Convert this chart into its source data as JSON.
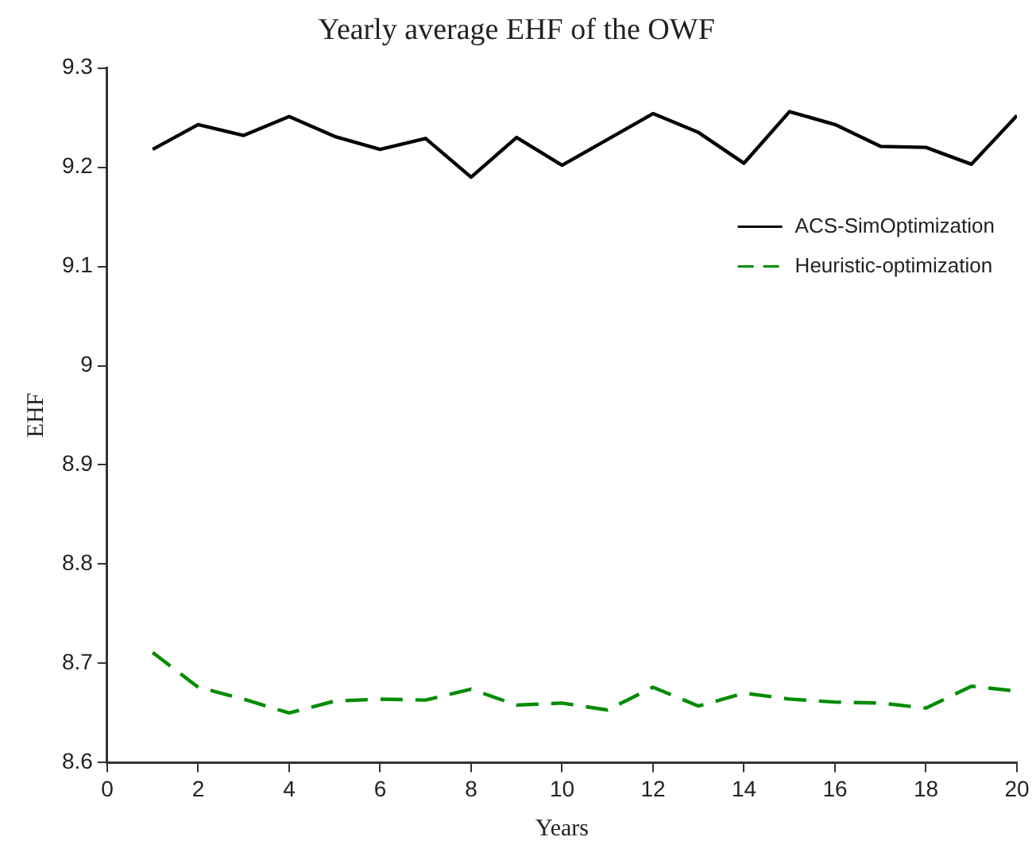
{
  "chart_data": {
    "type": "line",
    "title": "Yearly average EHF of the OWF",
    "xlabel": "Years",
    "ylabel": "EHF",
    "x": [
      1,
      2,
      3,
      4,
      5,
      6,
      7,
      8,
      9,
      10,
      11,
      12,
      13,
      14,
      15,
      16,
      17,
      18,
      19,
      20
    ],
    "series": [
      {
        "name": "ACS-SimOptimization",
        "color": "#000000",
        "line_style": "solid",
        "values": [
          9.218,
          9.243,
          9.232,
          9.251,
          9.231,
          9.218,
          9.229,
          9.19,
          9.23,
          9.202,
          9.228,
          9.254,
          9.235,
          9.204,
          9.256,
          9.243,
          9.221,
          9.22,
          9.203,
          9.252
        ]
      },
      {
        "name": "Heuristic-optimization",
        "color": "#008c00",
        "line_style": "dashed",
        "values": [
          8.711,
          8.676,
          8.664,
          8.65,
          8.662,
          8.664,
          8.663,
          8.674,
          8.658,
          8.66,
          8.653,
          8.676,
          8.657,
          8.67,
          8.664,
          8.661,
          8.66,
          8.655,
          8.677,
          8.672
        ]
      }
    ],
    "xlim": [
      0,
      20
    ],
    "xticks": [
      0,
      2,
      4,
      6,
      8,
      10,
      12,
      14,
      16,
      18,
      20
    ],
    "ylim": [
      8.6,
      9.3
    ],
    "yticks": [
      8.6,
      8.7,
      8.8,
      8.9,
      9,
      9.1,
      9.2,
      9.3
    ],
    "grid": false,
    "legend": "top right",
    "marker": "none"
  }
}
